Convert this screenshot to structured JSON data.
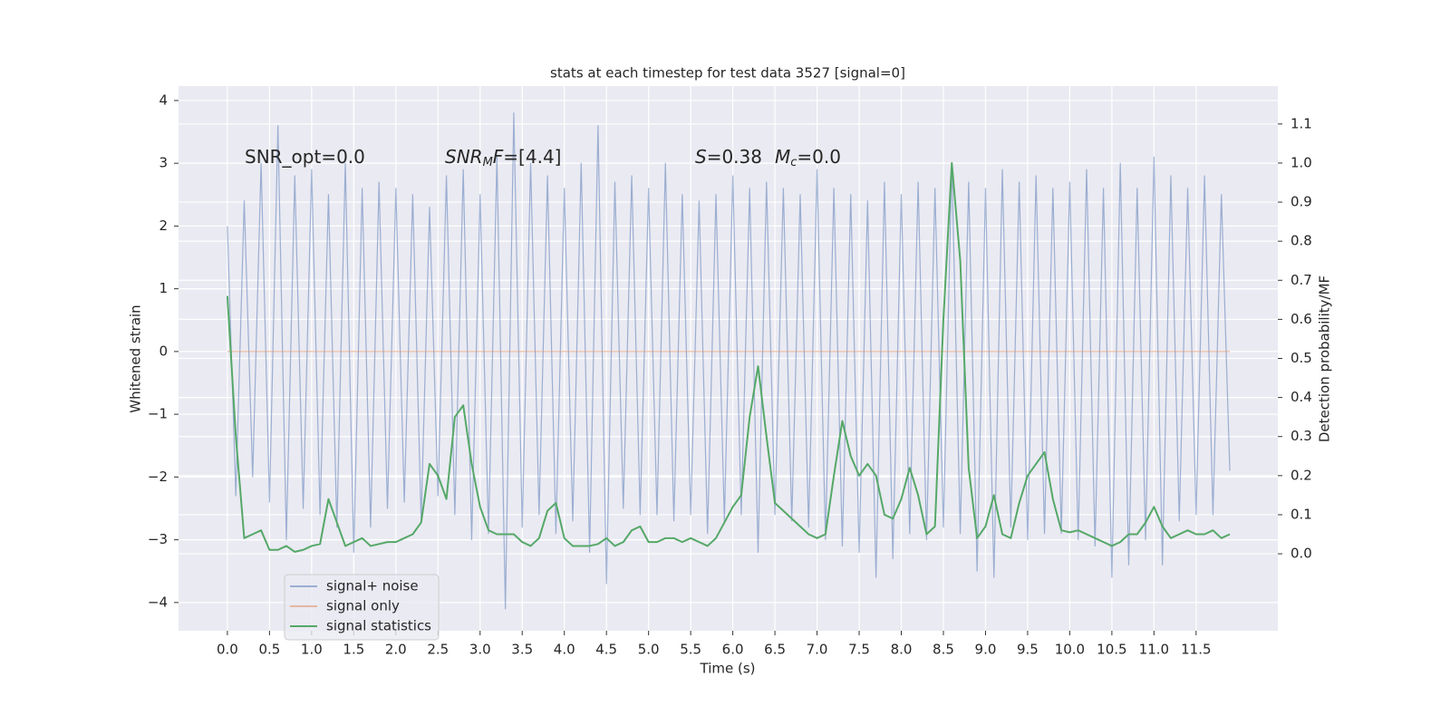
{
  "chart_data": {
    "type": "line",
    "title": "stats at each timestep for test data 3527 [signal=0]",
    "xlabel": "Time (s)",
    "ylabel": "Whitened strain",
    "y2label": "Detection probability/MF",
    "annotations": [
      [
        "SNR_opt=0.0"
      ],
      [
        "SNR",
        "M",
        "F",
        "=[4.4]"
      ],
      [
        "S",
        "=0.38",
        "M",
        "c",
        "=0.0"
      ]
    ],
    "legend": "lower left",
    "grid": true,
    "xlim": [
      -0.58,
      12.47
    ],
    "ylim": [
      -4.45,
      4.23
    ],
    "y2lim": [
      -0.197,
      1.197
    ],
    "xticks": [
      {
        "value": 0,
        "label": "0.0"
      },
      0.5,
      {
        "value": 1,
        "label": "1.0"
      },
      1.5,
      {
        "value": 2,
        "label": "2.0"
      },
      2.5,
      {
        "value": 3,
        "label": "3.0"
      },
      3.5,
      {
        "value": 4,
        "label": "4.0"
      },
      4.5,
      {
        "value": 5,
        "label": "5.0"
      },
      5.5,
      {
        "value": 6,
        "label": "6.0"
      },
      6.5,
      {
        "value": 7,
        "label": "7.0"
      },
      7.5,
      {
        "value": 8,
        "label": "8.0"
      },
      8.5,
      {
        "value": 9,
        "label": "9.0"
      },
      9.5,
      {
        "value": 10,
        "label": "10.0"
      },
      10.5,
      {
        "value": 11,
        "label": "11.0"
      },
      11.5
    ],
    "yticks": [
      {
        "value": -4,
        "label": "−4"
      },
      {
        "value": -3,
        "label": "−3"
      },
      {
        "value": -2,
        "label": "−2"
      },
      {
        "value": -1,
        "label": "−1"
      },
      0,
      1,
      2,
      3,
      4
    ],
    "y2ticks": [
      {
        "value": 0,
        "label": "0.0"
      },
      0.1,
      0.2,
      0.3,
      0.4,
      0.5,
      0.6,
      0.7,
      0.8,
      0.9,
      {
        "value": 1,
        "label": "1.0"
      },
      1.1
    ],
    "x": [
      0.0,
      0.1,
      0.2,
      0.3,
      0.4,
      0.5,
      0.6,
      0.7,
      0.8,
      0.9,
      1.0,
      1.1,
      1.2,
      1.3,
      1.4,
      1.5,
      1.6,
      1.7,
      1.8,
      1.9,
      2.0,
      2.1,
      2.2,
      2.3,
      2.4,
      2.5,
      2.6,
      2.7,
      2.8,
      2.9,
      3.0,
      3.1,
      3.2,
      3.3,
      3.4,
      3.5,
      3.6,
      3.7,
      3.8,
      3.9,
      4.0,
      4.1,
      4.2,
      4.3,
      4.4,
      4.5,
      4.6,
      4.7,
      4.8,
      4.9,
      5.0,
      5.1,
      5.2,
      5.3,
      5.4,
      5.5,
      5.6,
      5.7,
      5.8,
      5.9,
      6.0,
      6.1,
      6.2,
      6.3,
      6.4,
      6.5,
      6.6,
      6.7,
      6.8,
      6.9,
      7.0,
      7.1,
      7.2,
      7.3,
      7.4,
      7.5,
      7.6,
      7.7,
      7.8,
      7.9,
      8.0,
      8.1,
      8.2,
      8.3,
      8.4,
      8.5,
      8.6,
      8.7,
      8.8,
      8.9,
      9.0,
      9.1,
      9.2,
      9.3,
      9.4,
      9.5,
      9.6,
      9.7,
      9.8,
      9.9,
      10.0,
      10.1,
      10.2,
      10.3,
      10.4,
      10.5,
      10.6,
      10.7,
      10.8,
      10.9,
      11.0,
      11.1,
      11.2,
      11.3,
      11.4,
      11.5,
      11.6,
      11.7,
      11.8,
      11.9
    ],
    "series": [
      {
        "name": "signal+ noise",
        "color": "#4c72b0",
        "values": [
          2.0,
          -2.3,
          2.4,
          -2.0,
          3.0,
          -2.4,
          3.6,
          -3.0,
          2.8,
          -2.5,
          2.9,
          -2.6,
          2.5,
          -2.8,
          3.0,
          -3.2,
          2.6,
          -2.8,
          2.7,
          -2.5,
          2.6,
          -2.4,
          2.5,
          -2.7,
          2.3,
          -2.3,
          2.8,
          -2.6,
          2.9,
          -3.0,
          2.5,
          -2.9,
          3.1,
          -4.1,
          3.8,
          -2.8,
          3.0,
          -2.6,
          2.8,
          -2.9,
          2.6,
          -2.7,
          3.0,
          -3.2,
          3.6,
          -3.7,
          2.7,
          -2.5,
          2.8,
          -2.6,
          2.6,
          -2.6,
          3.0,
          -2.7,
          2.5,
          -2.6,
          2.4,
          -2.9,
          2.5,
          -2.7,
          2.8,
          -2.6,
          2.6,
          -3.2,
          2.7,
          -2.6,
          2.6,
          -2.7,
          2.5,
          -2.8,
          2.9,
          -3.0,
          2.6,
          -3.1,
          2.5,
          -3.2,
          2.4,
          -3.6,
          2.7,
          -3.3,
          2.5,
          -2.9,
          2.7,
          -3.0,
          2.6,
          -2.8,
          3.0,
          -2.9,
          2.7,
          -3.5,
          2.6,
          -3.6,
          2.9,
          -2.8,
          2.7,
          -3.0,
          2.8,
          -2.9,
          2.6,
          -2.9,
          2.7,
          -3.0,
          2.9,
          -3.1,
          2.6,
          -3.6,
          3.0,
          -3.4,
          2.6,
          -3.0,
          3.1,
          -3.4,
          2.8,
          -2.7,
          2.6,
          -2.6,
          2.8,
          -2.6,
          2.5,
          -1.9
        ]
      },
      {
        "name": "signal only",
        "color": "#dd8452",
        "values": [
          0,
          0,
          0,
          0,
          0,
          0,
          0,
          0,
          0,
          0,
          0,
          0,
          0,
          0,
          0,
          0,
          0,
          0,
          0,
          0,
          0,
          0,
          0,
          0,
          0,
          0,
          0,
          0,
          0,
          0,
          0,
          0,
          0,
          0,
          0,
          0,
          0,
          0,
          0,
          0,
          0,
          0,
          0,
          0,
          0,
          0,
          0,
          0,
          0,
          0,
          0,
          0,
          0,
          0,
          0,
          0,
          0,
          0,
          0,
          0,
          0,
          0,
          0,
          0,
          0,
          0,
          0,
          0,
          0,
          0,
          0,
          0,
          0,
          0,
          0,
          0,
          0,
          0,
          0,
          0,
          0,
          0,
          0,
          0,
          0,
          0,
          0,
          0,
          0,
          0,
          0,
          0,
          0,
          0,
          0,
          0,
          0,
          0,
          0,
          0,
          0,
          0,
          0,
          0,
          0,
          0,
          0,
          0,
          0,
          0,
          0,
          0,
          0,
          0,
          0,
          0,
          0,
          0,
          0,
          0
        ]
      },
      {
        "name": "signal statistics",
        "color": "#55a868",
        "axis": "y2",
        "values": [
          0.66,
          0.3,
          0.04,
          0.05,
          0.06,
          0.01,
          0.01,
          0.02,
          0.005,
          0.01,
          0.02,
          0.025,
          0.14,
          0.08,
          0.02,
          0.03,
          0.04,
          0.02,
          0.025,
          0.03,
          0.03,
          0.04,
          0.05,
          0.08,
          0.23,
          0.2,
          0.14,
          0.35,
          0.38,
          0.23,
          0.12,
          0.06,
          0.05,
          0.05,
          0.05,
          0.03,
          0.02,
          0.04,
          0.11,
          0.13,
          0.04,
          0.02,
          0.02,
          0.02,
          0.025,
          0.04,
          0.02,
          0.03,
          0.06,
          0.07,
          0.03,
          0.03,
          0.04,
          0.04,
          0.03,
          0.04,
          0.03,
          0.02,
          0.04,
          0.08,
          0.12,
          0.15,
          0.35,
          0.48,
          0.3,
          0.13,
          0.11,
          0.09,
          0.07,
          0.05,
          0.04,
          0.05,
          0.2,
          0.34,
          0.25,
          0.2,
          0.23,
          0.2,
          0.1,
          0.09,
          0.14,
          0.22,
          0.15,
          0.05,
          0.07,
          0.6,
          1.0,
          0.75,
          0.22,
          0.04,
          0.07,
          0.15,
          0.05,
          0.04,
          0.13,
          0.2,
          0.23,
          0.26,
          0.14,
          0.06,
          0.055,
          0.06,
          0.05,
          0.04,
          0.03,
          0.02,
          0.03,
          0.05,
          0.05,
          0.08,
          0.12,
          0.07,
          0.04,
          0.05,
          0.06,
          0.05,
          0.05,
          0.06,
          0.04,
          0.05
        ]
      }
    ]
  }
}
